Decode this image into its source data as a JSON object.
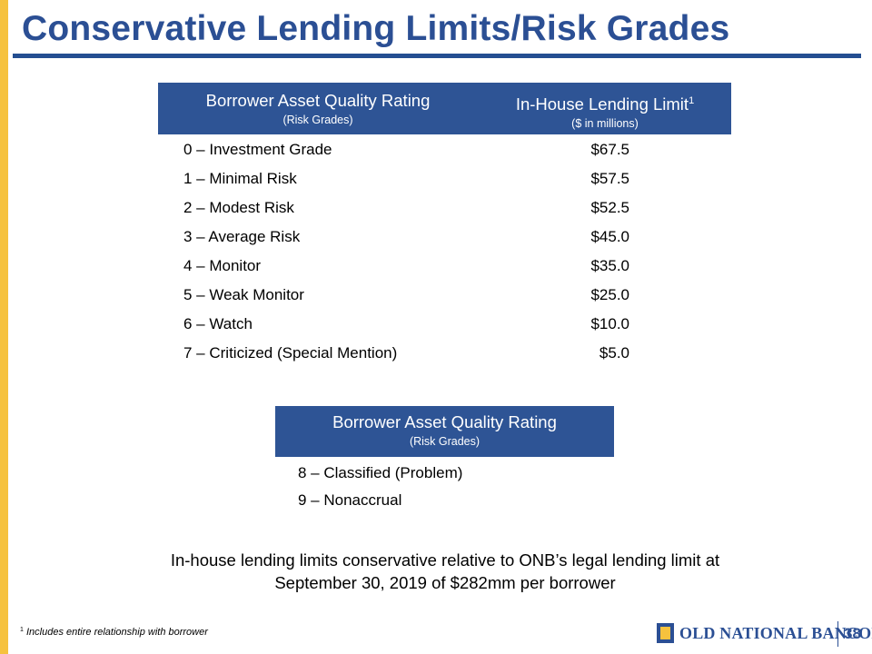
{
  "title": "Conservative Lending Limits/Risk Grades",
  "table1": {
    "header_rating": "Borrower Asset Quality Rating",
    "header_rating_sub": "(Risk Grades)",
    "header_limit": "In-House Lending Limit",
    "header_limit_sup": "1",
    "header_limit_sub": "($ in millions)",
    "rows": [
      {
        "grade": "0 – Investment Grade",
        "limit": "$67.5"
      },
      {
        "grade": "1 – Minimal Risk",
        "limit": "$57.5"
      },
      {
        "grade": "2 – Modest Risk",
        "limit": "$52.5"
      },
      {
        "grade": "3 – Average Risk",
        "limit": "$45.0"
      },
      {
        "grade": "4 – Monitor",
        "limit": "$35.0"
      },
      {
        "grade": "5 – Weak Monitor",
        "limit": "$25.0"
      },
      {
        "grade": "6 – Watch",
        "limit": "$10.0"
      },
      {
        "grade": "7 – Criticized (Special Mention)",
        "limit": "$5.0"
      }
    ]
  },
  "table2": {
    "header_rating": "Borrower Asset Quality Rating",
    "header_rating_sub": "(Risk Grades)",
    "rows": [
      {
        "grade": "8 – Classified (Problem)"
      },
      {
        "grade": "9 – Nonaccrual"
      }
    ]
  },
  "note": {
    "line1": "In-house lending limits conservative relative to ONB’s legal lending limit at",
    "line2": "September 30, 2019 of $282mm per borrower"
  },
  "footnote": {
    "marker": "1",
    "text": "Includes entire relationship with borrower"
  },
  "footer": {
    "logo_text": "OLD NATIONAL BANCORP",
    "logo_mark": "®",
    "page_number": "38"
  },
  "colors": {
    "brand_blue": "#2b4f94",
    "header_fill": "#2e5495",
    "accent_gold": "#f6c23e"
  }
}
